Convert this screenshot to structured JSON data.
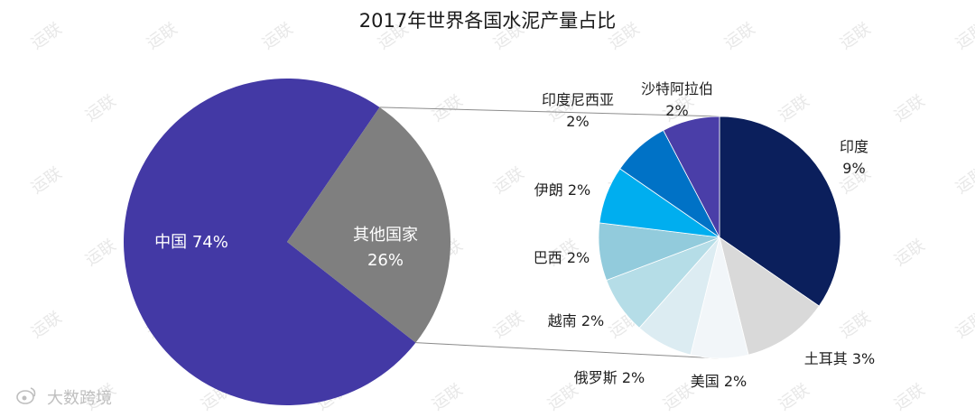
{
  "chart_data": {
    "type": "pie",
    "title": "2017年世界各国水泥产量占比",
    "main_pie": {
      "slices": [
        {
          "label": "中国",
          "value_label": "74%",
          "value": 74,
          "color": "#4339a5"
        },
        {
          "label": "其他国家",
          "value_label": "26%",
          "value": 26,
          "color": "#7f7f7f"
        }
      ]
    },
    "detail_pie": {
      "slices": [
        {
          "label": "印度",
          "value_label": "9%",
          "value": 9,
          "color": "#0b1f5c"
        },
        {
          "label": "土耳其",
          "value_label": "3%",
          "value": 3,
          "color": "#d9d9d9"
        },
        {
          "label": "美国",
          "value_label": "2%",
          "value": 2,
          "color": "#f2f6f9"
        },
        {
          "label": "俄罗斯",
          "value_label": "2%",
          "value": 2,
          "color": "#dcecf2"
        },
        {
          "label": "越南",
          "value_label": "2%",
          "value": 2,
          "color": "#b5dde7"
        },
        {
          "label": "巴西",
          "value_label": "2%",
          "value": 2,
          "color": "#92cbdc"
        },
        {
          "label": "伊朗",
          "value_label": "2%",
          "value": 2,
          "color": "#00aeef"
        },
        {
          "label": "印度尼西亚",
          "value_label": "2%",
          "value": 2,
          "color": "#0072c6"
        },
        {
          "label": "沙特阿拉伯",
          "value_label": "2%",
          "value": 2,
          "color": "#4a3ea8"
        }
      ]
    }
  },
  "watermark": {
    "text": "运联",
    "brand": "大数跨境"
  }
}
